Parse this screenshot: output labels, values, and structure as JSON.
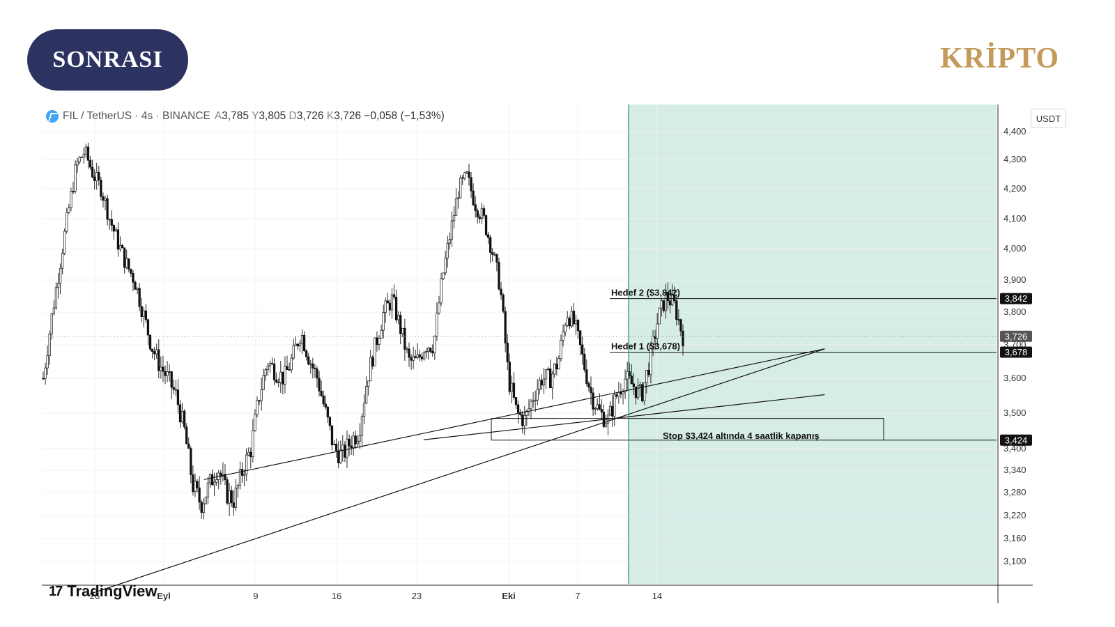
{
  "badge": {
    "label": "SONRASI",
    "color": "#2d3361"
  },
  "brand": {
    "label": "KRİPTO",
    "color": "#c49a5a"
  },
  "header": {
    "pair": "FIL / TetherUS · 4s · BINANCE",
    "open_label": "A",
    "open": "3,785",
    "high_label": "Y",
    "high": "3,805",
    "low_label": "D",
    "low": "3,726",
    "close_label": "K",
    "close": "3,726",
    "change": "−0,058 (−1,53%)",
    "icon": "filecoin-icon"
  },
  "footer_logo": {
    "mark": "17",
    "label": "TradingView"
  },
  "chart_data": {
    "type": "candlestick",
    "unit": "USDT",
    "y_ticks": [
      "3,100",
      "3,160",
      "3,220",
      "3,280",
      "3,340",
      "3,400",
      "3,500",
      "3,600",
      "3,700",
      "3,800",
      "3,900",
      "4,000",
      "4,100",
      "4,200",
      "4,300",
      "4,400"
    ],
    "x_ticks": [
      "26",
      "Eyl",
      "9",
      "16",
      "23",
      "Eki",
      "7",
      "14"
    ],
    "price_path": [
      3.6,
      3.78,
      3.95,
      4.12,
      4.28,
      4.33,
      4.25,
      4.2,
      4.1,
      4.02,
      3.95,
      3.9,
      3.8,
      3.7,
      3.64,
      3.6,
      3.55,
      3.45,
      3.3,
      3.25,
      3.3,
      3.35,
      3.28,
      3.26,
      3.34,
      3.4,
      3.55,
      3.65,
      3.62,
      3.6,
      3.66,
      3.74,
      3.66,
      3.6,
      3.5,
      3.4,
      3.38,
      3.42,
      3.45,
      3.6,
      3.7,
      3.8,
      3.84,
      3.75,
      3.65,
      3.65,
      3.7,
      3.7,
      3.9,
      4.05,
      4.2,
      4.24,
      4.15,
      4.1,
      4.0,
      3.88,
      3.6,
      3.5,
      3.48,
      3.55,
      3.6,
      3.6,
      3.65,
      3.8,
      3.76,
      3.65,
      3.55,
      3.5,
      3.48,
      3.55,
      3.6,
      3.58,
      3.55,
      3.65,
      3.78,
      3.85,
      3.82,
      3.726
    ],
    "levels": [
      {
        "label": "Hedef 2 ($3,842)",
        "price": 3.842,
        "tag": "3,842"
      },
      {
        "label": "Hedef 1 ($3,678)",
        "price": 3.678,
        "tag": "3,678"
      },
      {
        "label": "Stop $3,424 altında 4 saatlik kapanış",
        "price": 3.424,
        "tag": "3,424"
      }
    ],
    "last_price": {
      "value": 3.726,
      "tag": "3,726"
    },
    "stop_zone": {
      "top": 3.485,
      "bottom": 3.424
    },
    "trendlines": [
      {
        "from": [
          0.17,
          3.315
        ],
        "to": [
          0.82,
          3.688
        ]
      },
      {
        "from": [
          0.05,
          3.015
        ],
        "to": [
          0.82,
          3.688
        ]
      },
      {
        "from": [
          0.4,
          3.425
        ],
        "to": [
          0.82,
          3.553
        ]
      }
    ],
    "colors": {
      "candle": "#111111",
      "projection": "#d6ece7",
      "projection_edge": "#2a8a7a",
      "tag": "#111111",
      "last_tag": "#555555"
    }
  }
}
